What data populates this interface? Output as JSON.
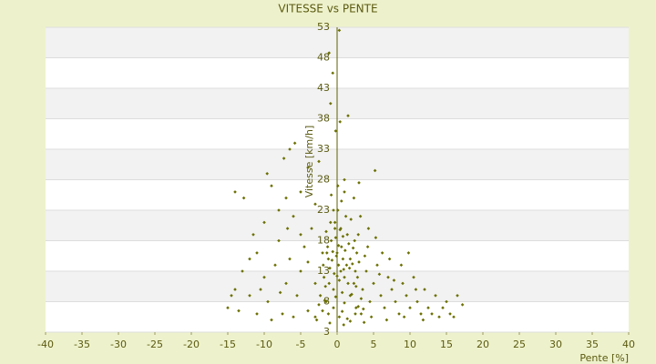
{
  "chart_data": {
    "type": "scatter",
    "title": "VITESSE vs PENTE",
    "x_label": "Pente [%]",
    "y_label": "Vitesse [km/h]",
    "color": "#6b7000",
    "xlim": [
      -40,
      40
    ],
    "xticks": [
      -40,
      -35,
      -30,
      -25,
      -20,
      -15,
      -10,
      -5,
      0,
      5,
      10,
      15,
      20,
      25,
      30,
      35,
      40
    ],
    "ylim": [
      3,
      53
    ],
    "yticks": [
      3,
      8,
      13,
      18,
      23,
      28,
      33,
      38,
      43,
      48,
      53
    ],
    "grid": true,
    "x": [
      0.3,
      -0.6,
      -1.1,
      0.4,
      1.5,
      -0.9,
      -0.2,
      -5.8,
      -6.5,
      -7.3,
      5.2,
      -9.6,
      -14,
      -12.8,
      -9,
      -4,
      1,
      3,
      2.3,
      -2.5,
      -15,
      -14,
      -13,
      -12,
      -13.5,
      -11,
      -10,
      -11.5,
      -9.5,
      -8.5,
      -10,
      -8,
      -7.5,
      -7,
      -6.5,
      -6,
      -5.5,
      -5,
      -4.5,
      -4,
      -3.5,
      -3,
      -2.5,
      -6,
      -9,
      -12,
      -8,
      -7,
      -5,
      -3,
      -4,
      -5,
      -2,
      -1.5,
      -3,
      -10.5,
      -7.8,
      -6.8,
      -11,
      -14.5,
      -1.8,
      -1.2,
      -0.8,
      -0.3,
      0.2,
      0.6,
      1,
      1.4,
      1.8,
      2.3,
      2.7,
      -1.5,
      -0.5,
      0,
      0.5,
      1.2,
      1.8,
      2.5,
      -1,
      0.8,
      -0.2,
      0.3,
      1.6,
      2.9,
      -1.6,
      -0.7,
      0.1,
      0.9,
      2.1,
      -1.3,
      0.4,
      1.1,
      -0.4,
      0.7,
      2.4,
      -1.9,
      -0.1,
      1.5,
      0.2,
      -0.9,
      1.9,
      3,
      -0.6,
      0.5,
      1.3,
      0,
      -1.1,
      2.2,
      0.8,
      -0.3,
      1.7,
      2.6,
      -1.4,
      0.6,
      -0.8,
      0.1,
      1,
      -0.5,
      3.2,
      2.8,
      3.5,
      4,
      4.5,
      5,
      5.5,
      6,
      6.5,
      7,
      7.5,
      8,
      8.5,
      9,
      9.5,
      10,
      10.5,
      11,
      11.5,
      12,
      12.5,
      13,
      13.5,
      14,
      14.5,
      15,
      15.5,
      16,
      17.2,
      16.5,
      3.8,
      4.2,
      5.3,
      6.2,
      7.2,
      8.8,
      9.8,
      3.3,
      4.7,
      6.8,
      9.2,
      11.8,
      5.8,
      7.8,
      10.8,
      4.3,
      2.6,
      -2.8,
      -2,
      -1,
      -0.5,
      0.3,
      1,
      1.8,
      2.5,
      3.3,
      -1.7,
      0.7,
      3.7,
      -0.2,
      2,
      -2.3,
      1.4,
      -1.2,
      0.9,
      2.9,
      3.6
    ],
    "values": [
      52.5,
      45.5,
      48.8,
      37.5,
      38.5,
      40.5,
      36,
      34,
      33,
      31.5,
      29.5,
      29,
      26,
      25,
      27,
      30,
      28,
      27.5,
      25,
      31,
      7,
      10,
      13,
      9,
      6.5,
      16,
      12,
      19,
      8,
      14,
      21,
      18,
      6,
      11,
      15,
      22,
      9,
      13,
      17,
      6.5,
      20,
      11,
      7.5,
      5.5,
      5,
      15,
      23,
      25,
      26,
      24,
      14.5,
      19,
      16,
      8,
      5.5,
      10,
      9.5,
      20,
      6,
      9,
      12,
      15,
      18,
      21,
      14,
      17,
      12,
      19,
      15,
      11,
      16,
      19.5,
      10,
      16,
      20,
      22,
      9,
      13,
      13.5,
      15,
      18.5,
      11.5,
      17.5,
      19,
      10.5,
      14.8,
      23,
      13.3,
      14.2,
      17,
      19.8,
      16.4,
      12.6,
      9.5,
      18,
      14,
      15.5,
      11,
      17.2,
      21,
      21.5,
      14.5,
      16.2,
      13,
      14,
      12.2,
      11,
      16.8,
      18.7,
      20,
      13.5,
      10.5,
      16,
      24.5,
      25.5,
      27,
      26,
      23,
      22,
      12,
      10,
      13,
      8,
      11,
      14,
      9,
      7,
      12,
      10,
      8,
      6,
      11,
      9,
      7,
      12,
      8,
      6,
      10,
      7,
      6,
      9,
      5.5,
      7,
      8,
      6,
      5.5,
      7.5,
      9,
      15.5,
      17,
      18.5,
      16,
      15,
      14,
      16,
      6,
      5.5,
      5,
      5.5,
      5,
      12.5,
      11.5,
      10,
      20,
      7,
      5,
      6.5,
      4.5,
      7,
      5.5,
      7.8,
      4.8,
      6,
      8.5,
      8.2,
      6.4,
      4.6,
      8.8,
      9.2,
      9,
      5.2,
      6,
      4.2,
      7.2,
      6.8
    ]
  }
}
